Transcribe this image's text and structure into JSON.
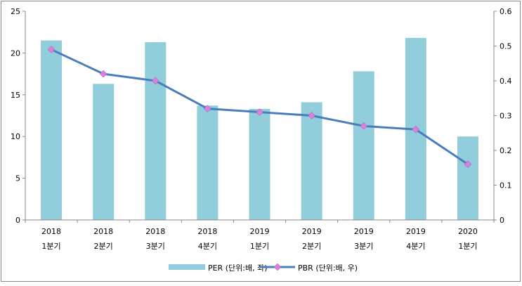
{
  "chart_data": {
    "type": "bar+line",
    "categories": [
      [
        "2018",
        "1분기"
      ],
      [
        "2018",
        "2분기"
      ],
      [
        "2018",
        "3분기"
      ],
      [
        "2018",
        "4분기"
      ],
      [
        "2019",
        "1분기"
      ],
      [
        "2019",
        "2분기"
      ],
      [
        "2019",
        "3분기"
      ],
      [
        "2019",
        "4분기"
      ],
      [
        "2020",
        "1분기"
      ]
    ],
    "series": [
      {
        "name": "PER (단위:배, 좌)",
        "type": "bar",
        "axis": "left",
        "color": "#92CDDC",
        "values": [
          21.5,
          16.3,
          21.3,
          13.7,
          13.3,
          14.1,
          17.8,
          21.8,
          10.0
        ]
      },
      {
        "name": "PBR (단위:배, 우)",
        "type": "line",
        "axis": "right",
        "color": "#4A7EBB",
        "marker_color": "#E07CE0",
        "values": [
          0.49,
          0.42,
          0.4,
          0.32,
          0.31,
          0.3,
          0.27,
          0.26,
          0.16
        ]
      }
    ],
    "left_axis": {
      "ylim": [
        0,
        25
      ],
      "ticks": [
        "0",
        "5",
        "10",
        "15",
        "20",
        "25"
      ]
    },
    "right_axis": {
      "ylim": [
        0,
        0.6
      ],
      "ticks": [
        "0",
        "0.1",
        "0.2",
        "0.3",
        "0.4",
        "0.5",
        "0.6"
      ]
    },
    "grid": false,
    "legend": "bottom"
  }
}
